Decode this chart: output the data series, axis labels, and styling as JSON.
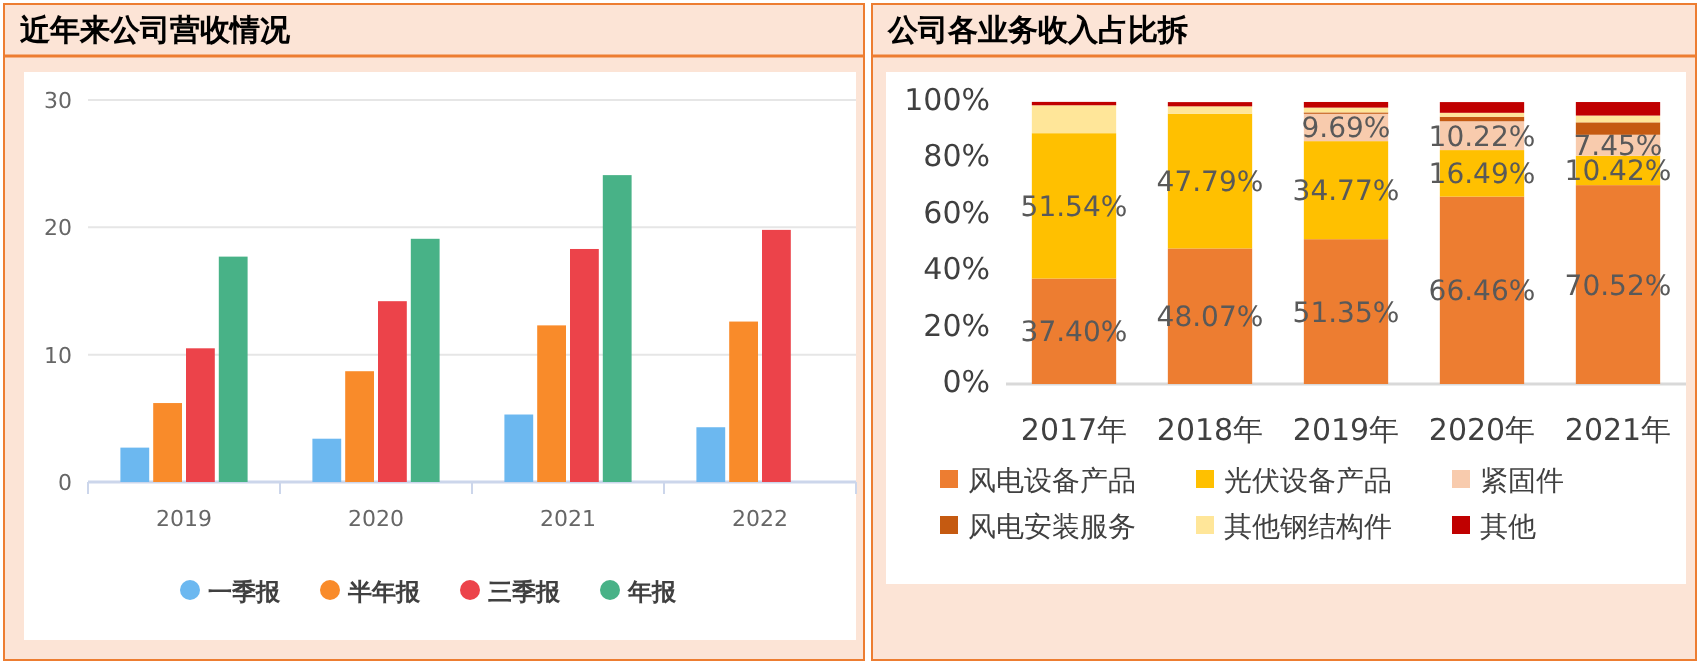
{
  "chart_data": [
    {
      "type": "bar",
      "title": "近年来公司营收情况",
      "categories": [
        "2019",
        "2020",
        "2021",
        "2022"
      ],
      "series": [
        {
          "name": "一季报",
          "color": "#6cb8f0",
          "values": [
            2.7,
            3.4,
            5.3,
            4.3
          ]
        },
        {
          "name": "半年报",
          "color": "#f98b2a",
          "values": [
            6.2,
            8.7,
            12.3,
            12.6
          ]
        },
        {
          "name": "三季报",
          "color": "#ec434a",
          "values": [
            10.5,
            14.2,
            18.3,
            19.8
          ]
        },
        {
          "name": "年报",
          "color": "#48b287",
          "values": [
            17.7,
            19.1,
            24.1,
            null
          ]
        }
      ],
      "ylim": [
        0,
        30
      ],
      "yticks": [
        0,
        10,
        20,
        30
      ],
      "grid": "y",
      "legend": "bottom",
      "marker": "circle"
    },
    {
      "type": "bar",
      "title": "公司各业务收入占比拆",
      "stacked": true,
      "categories": [
        "2017年",
        "2018年",
        "2019年",
        "2020年",
        "2021年"
      ],
      "series": [
        {
          "name": "风电设备产品",
          "color": "#ed7d31",
          "values": [
            37.4,
            48.07,
            51.35,
            66.46,
            70.52
          ],
          "value_labels": [
            "37.40%",
            "48.07%",
            "51.35%",
            "66.46%",
            "70.52%"
          ]
        },
        {
          "name": "光伏设备产品",
          "color": "#ffc000",
          "values": [
            51.54,
            47.79,
            34.77,
            16.49,
            10.42
          ],
          "value_labels": [
            "51.54%",
            "47.79%",
            "34.77%",
            "16.49%",
            "10.42%"
          ]
        },
        {
          "name": "紧固件",
          "color": "#f8cbad",
          "values": [
            0,
            0,
            9.69,
            10.22,
            7.45
          ],
          "value_labels": [
            null,
            null,
            "9.69%",
            "10.22%",
            "7.45%"
          ]
        },
        {
          "name": "风电安装服务",
          "color": "#c55a11",
          "values": [
            0,
            0,
            0.5,
            1.6,
            4.4
          ]
        },
        {
          "name": "其他钢结构件",
          "color": "#ffe699",
          "values": [
            9.9,
            2.6,
            1.7,
            1.4,
            2.4
          ]
        },
        {
          "name": "其他",
          "color": "#c00000",
          "values": [
            1.2,
            1.5,
            2.0,
            3.8,
            4.8
          ]
        }
      ],
      "ylim": [
        0,
        100
      ],
      "yticks": [
        {
          "value": 0,
          "label": "0%"
        },
        {
          "value": 20,
          "label": "20%"
        },
        {
          "value": 40,
          "label": "40%"
        },
        {
          "value": 60,
          "label": "60%"
        },
        {
          "value": 80,
          "label": "80%"
        },
        {
          "value": 100,
          "label": "100%"
        }
      ],
      "grid": false,
      "legend": "bottom",
      "marker": "square"
    }
  ]
}
